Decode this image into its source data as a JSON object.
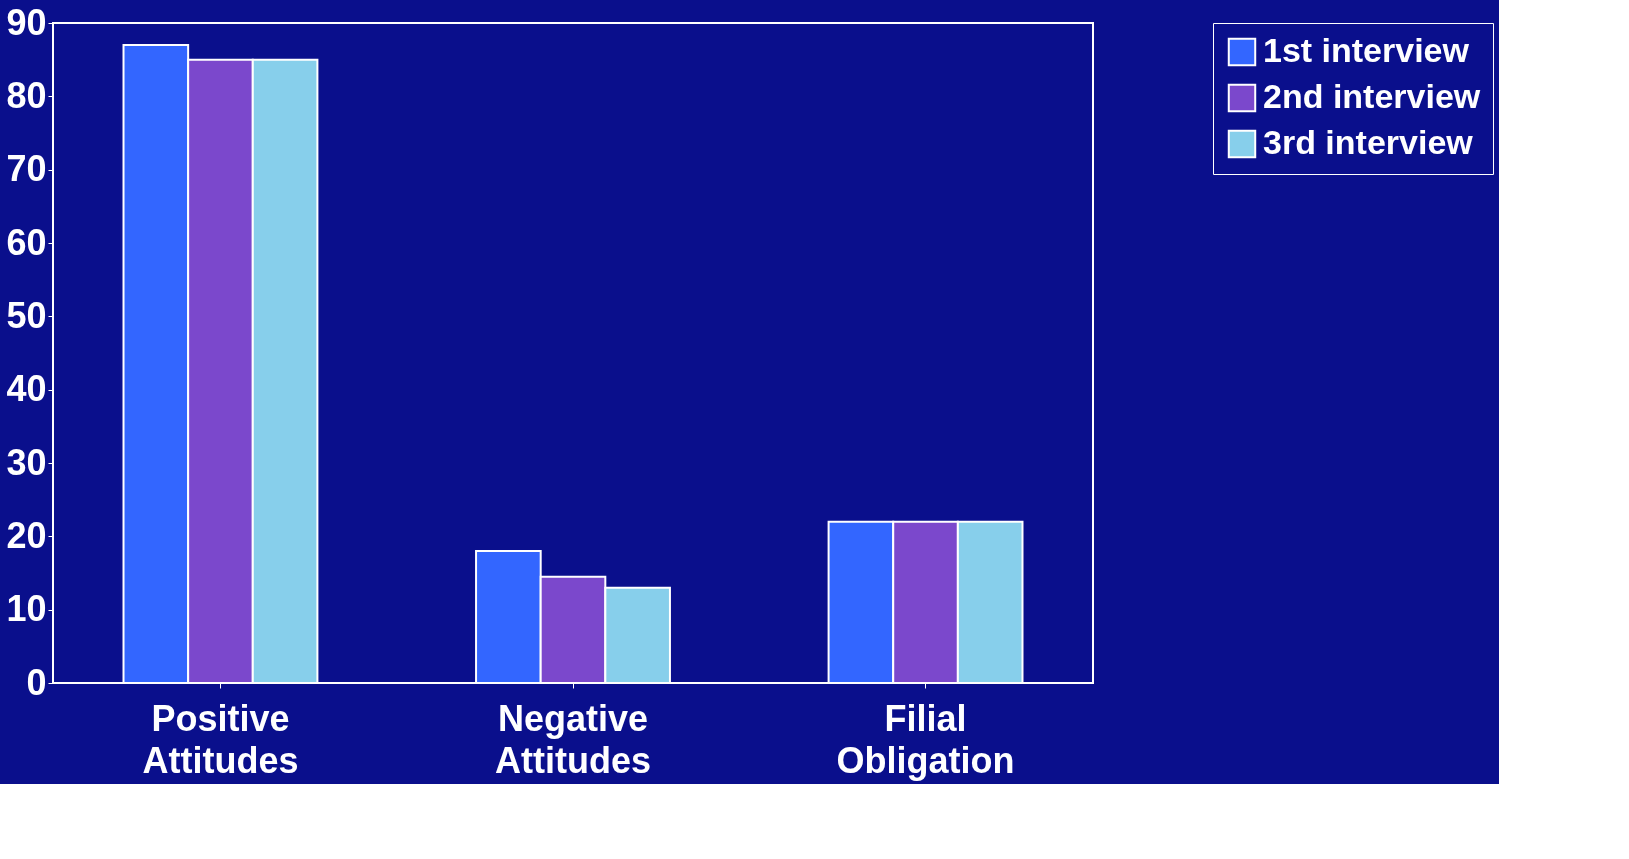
{
  "chart_data": {
    "type": "bar",
    "categories": [
      "Positive Attitudes",
      "Negative Attitudes",
      "Filial Obligation"
    ],
    "series": [
      {
        "name": "1st interview",
        "color": "#3366ff",
        "values": [
          87,
          18,
          22
        ]
      },
      {
        "name": "2nd interview",
        "color": "#7b48cc",
        "values": [
          85,
          14.5,
          22
        ]
      },
      {
        "name": "3rd interview",
        "color": "#87cfeb",
        "values": [
          85,
          13,
          22
        ]
      }
    ],
    "ylim": [
      0,
      90
    ],
    "yticks": [
      0,
      10,
      20,
      30,
      40,
      50,
      60,
      70,
      80,
      90
    ],
    "grid": false,
    "legend": "right"
  }
}
